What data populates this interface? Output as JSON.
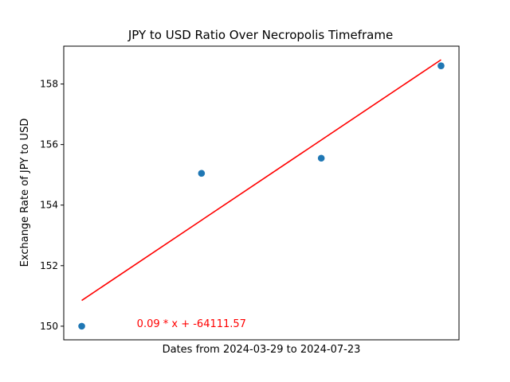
{
  "chart_data": {
    "type": "scatter",
    "title": "JPY to USD Ratio Over Necropolis Timeframe",
    "xlabel": "Dates from 2024-03-29 to 2024-07-23",
    "ylabel": "Exchange Rate of JPY to USD",
    "xlim": [
      -0.15,
      3.15
    ],
    "ylim": [
      149.55,
      159.25
    ],
    "yticks": [
      150,
      152,
      154,
      156,
      158
    ],
    "xticks": [],
    "series": [
      {
        "name": "JPY to USD",
        "x": [
          0,
          1,
          2,
          3
        ],
        "y": [
          150.0,
          155.05,
          155.55,
          158.6
        ],
        "color": "#1f77b4"
      }
    ],
    "trendline": {
      "x": [
        0,
        3
      ],
      "y": [
        150.85,
        158.8
      ],
      "color": "#ff0000"
    },
    "annotations": [
      {
        "text": "0.09 * x + -64111.57",
        "x": 0.46,
        "y": 150.0,
        "color": "#ff0000"
      }
    ]
  }
}
